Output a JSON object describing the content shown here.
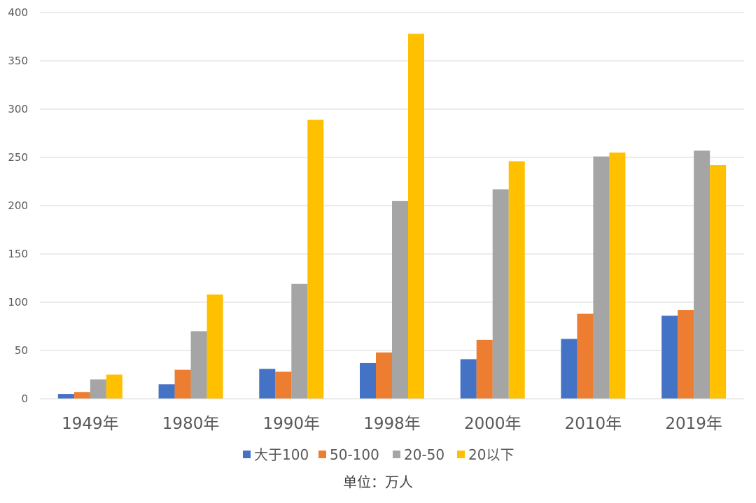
{
  "chart_data": {
    "type": "bar",
    "categories": [
      "1949年",
      "1980年",
      "1990年",
      "1998年",
      "2000年",
      "2010年",
      "2019年"
    ],
    "series": [
      {
        "name": "大于100",
        "color": "#4472C4",
        "values": [
          5,
          15,
          31,
          37,
          41,
          62,
          86
        ]
      },
      {
        "name": "50-100",
        "color": "#ED7D31",
        "values": [
          7,
          30,
          28,
          48,
          61,
          88,
          92
        ]
      },
      {
        "name": "20-50",
        "color": "#A5A5A5",
        "values": [
          20,
          70,
          119,
          205,
          217,
          251,
          257
        ]
      },
      {
        "name": "20以下",
        "color": "#FFC000",
        "values": [
          25,
          108,
          289,
          378,
          246,
          255,
          242
        ]
      }
    ],
    "ylim": [
      0,
      400
    ],
    "yticks": [
      "0",
      "50",
      "100",
      "150",
      "200",
      "250",
      "300",
      "350",
      "400"
    ],
    "grid": true,
    "legend_position": "bottom",
    "note": "单位：万人"
  }
}
